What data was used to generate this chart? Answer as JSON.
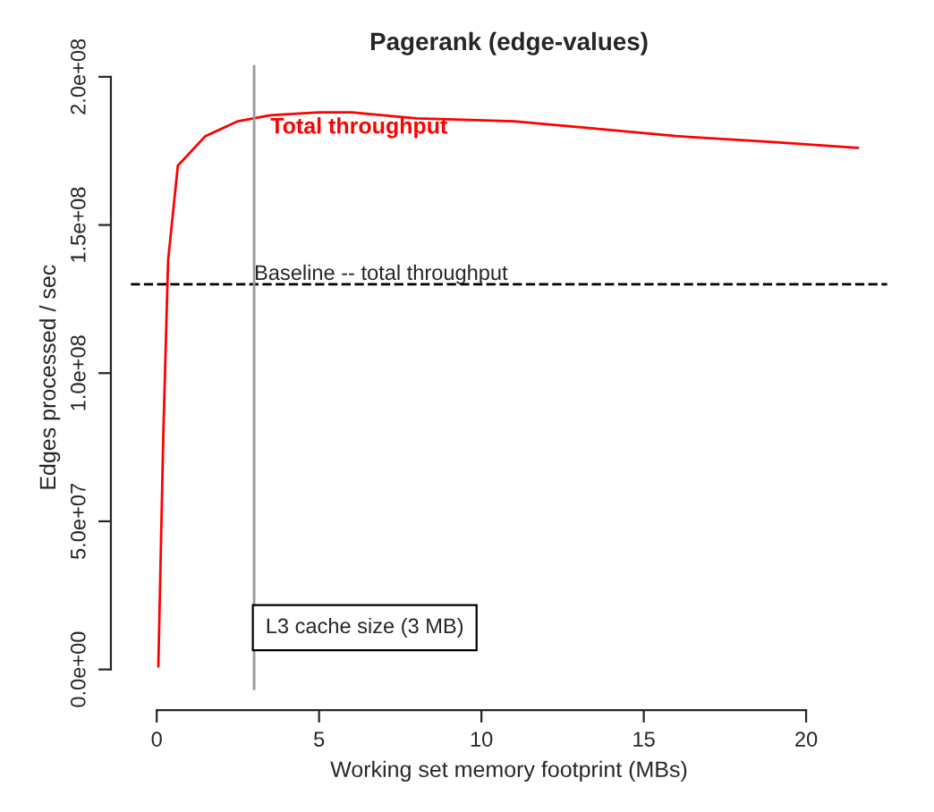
{
  "chart_data": {
    "type": "line",
    "title": "Pagerank (edge-values)",
    "xlabel": "Working set memory footprint (MBs)",
    "ylabel": "Edges processed / sec",
    "x": [
      0.05,
      0.2,
      0.35,
      0.65,
      1.5,
      2.5,
      3.5,
      5,
      6,
      8,
      11,
      13,
      16,
      19,
      21.6
    ],
    "series": [
      {
        "name": "Total throughput",
        "color": "#ff0000",
        "values": [
          1000000,
          78000000,
          138000000,
          170000000,
          180000000,
          185000000,
          187000000,
          188000000,
          188000000,
          186000000,
          185000000,
          183000000,
          180000000,
          178000000,
          176000000
        ]
      }
    ],
    "xlim": [
      -0.8,
      22.5
    ],
    "ylim": [
      -7000000,
      204000000
    ],
    "xticks": [
      0,
      5,
      10,
      15,
      20
    ],
    "yticks": [
      {
        "value": 0,
        "label": "0.0e+00"
      },
      {
        "value": 50000000,
        "label": "5.0e+07"
      },
      {
        "value": 100000000,
        "label": "1.0e+08"
      },
      {
        "value": 150000000,
        "label": "1.5e+08"
      },
      {
        "value": 200000000,
        "label": "2.0e+08"
      }
    ],
    "ref_lines": [
      {
        "axis": "y",
        "value": 130000000,
        "label": "Baseline -- total throughput",
        "color": "#000000",
        "line_style": "dashed"
      },
      {
        "axis": "x",
        "value": 3,
        "label": "L3 cache size (3 MB)",
        "color": "#999999",
        "line_style": "solid"
      }
    ],
    "grid": false,
    "legend": false
  }
}
